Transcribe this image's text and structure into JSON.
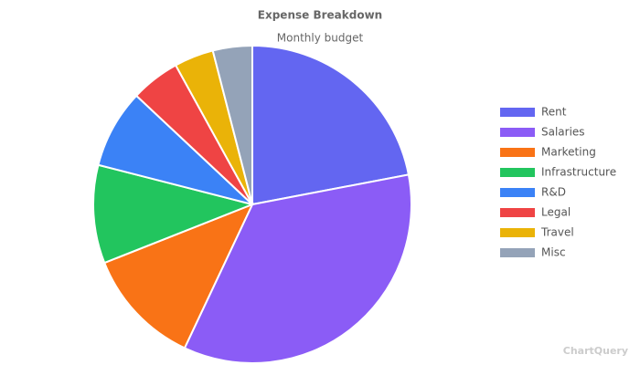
{
  "chart_data": {
    "type": "pie",
    "title": "Expense Breakdown",
    "subtitle": "Monthly budget",
    "categories": [
      "Rent",
      "Salaries",
      "Marketing",
      "Infrastructure",
      "R&D",
      "Legal",
      "Travel",
      "Misc"
    ],
    "values": [
      22,
      35,
      12,
      10,
      8,
      5,
      4,
      4
    ],
    "colors": [
      "#6366f1",
      "#8b5cf6",
      "#f97316",
      "#22c55e",
      "#3b82f6",
      "#ef4444",
      "#eab308",
      "#94a3b8"
    ],
    "legend": "right",
    "watermark": "ChartQuery"
  }
}
